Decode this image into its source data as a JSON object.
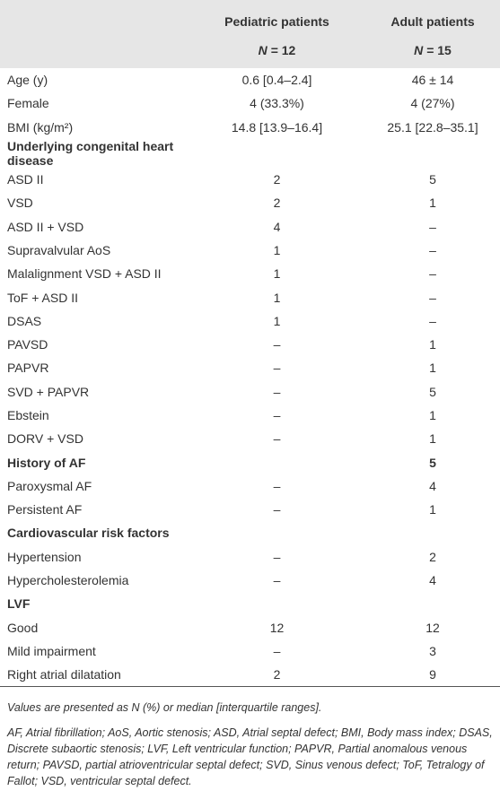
{
  "table": {
    "columns": [
      {
        "title": "Pediatric patients",
        "n_symbol": "N",
        "n_value": "= 12"
      },
      {
        "title": "Adult patients",
        "n_symbol": "N",
        "n_value": "= 15"
      }
    ],
    "rows": [
      {
        "label": "Age (y)",
        "pediatric": "0.6 [0.4–2.4]",
        "adult": "46 ± 14"
      },
      {
        "label": "Female",
        "pediatric": "4 (33.3%)",
        "adult": "4 (27%)"
      },
      {
        "label": "BMI (kg/m²)",
        "pediatric": "14.8 [13.9–16.4]",
        "adult": "25.1 [22.8–35.1]"
      },
      {
        "label": "Underlying congenital heart disease",
        "bold": true
      },
      {
        "label": "ASD II",
        "pediatric": "2",
        "adult": "5"
      },
      {
        "label": "VSD",
        "pediatric": "2",
        "adult": "1"
      },
      {
        "label": "ASD II + VSD",
        "pediatric": "4",
        "adult": "–"
      },
      {
        "label": "Supravalvular AoS",
        "pediatric": "1",
        "adult": "–"
      },
      {
        "label": "Malalignment VSD + ASD II",
        "pediatric": "1",
        "adult": "–"
      },
      {
        "label": "ToF + ASD II",
        "pediatric": "1",
        "adult": "–"
      },
      {
        "label": "DSAS",
        "pediatric": "1",
        "adult": "–"
      },
      {
        "label": "PAVSD",
        "pediatric": "–",
        "adult": "1"
      },
      {
        "label": "PAPVR",
        "pediatric": "–",
        "adult": "1"
      },
      {
        "label": "SVD + PAPVR",
        "pediatric": "–",
        "adult": "5"
      },
      {
        "label": "Ebstein",
        "pediatric": "–",
        "adult": "1"
      },
      {
        "label": "DORV + VSD",
        "pediatric": "–",
        "adult": "1"
      },
      {
        "label": "History of AF",
        "adult": "5",
        "bold": true
      },
      {
        "label": "Paroxysmal AF",
        "pediatric": "–",
        "adult": "4"
      },
      {
        "label": "Persistent AF",
        "pediatric": "–",
        "adult": "1"
      },
      {
        "label": "Cardiovascular risk factors",
        "bold": true
      },
      {
        "label": "Hypertension",
        "pediatric": "–",
        "adult": "2"
      },
      {
        "label": "Hypercholesterolemia",
        "pediatric": "–",
        "adult": "4"
      },
      {
        "label": "LVF",
        "bold": true
      },
      {
        "label": "Good",
        "pediatric": "12",
        "adult": "12"
      },
      {
        "label": "Mild impairment",
        "pediatric": "–",
        "adult": "3"
      },
      {
        "label": "Right atrial dilatation",
        "pediatric": "2",
        "adult": "9"
      }
    ]
  },
  "footnotes": [
    "Values are presented as N (%) or median [interquartile ranges].",
    "AF, Atrial fibrillation; AoS, Aortic stenosis; ASD, Atrial septal defect; BMI, Body mass index; DSAS, Discrete subaortic stenosis; LVF, Left ventricular function; PAPVR, Partial anomalous venous return; PAVSD, partial atrioventricular septal defect; SVD, Sinus venous defect; ToF, Tetralogy of Fallot; VSD, ventricular septal defect."
  ]
}
